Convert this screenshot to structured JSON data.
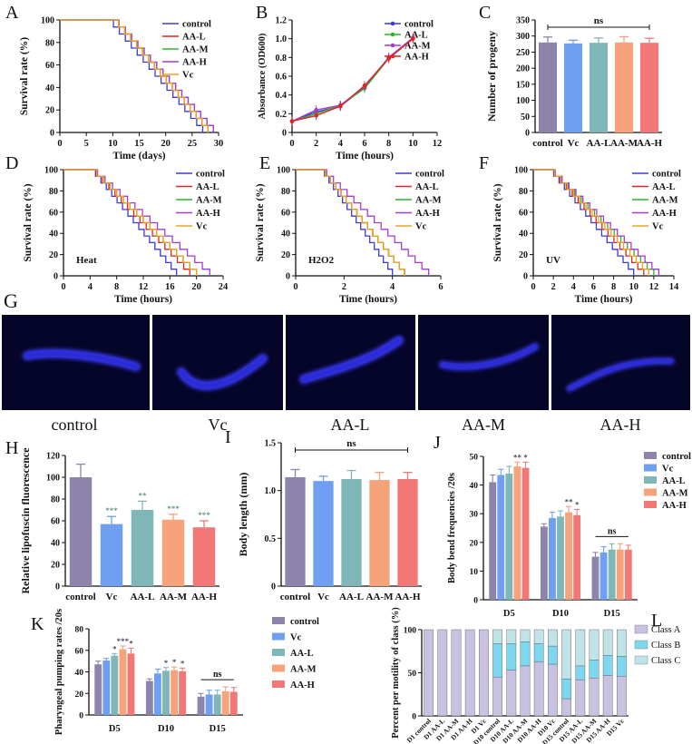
{
  "colors": {
    "control": "#3b3bd6",
    "red": "#e02424",
    "green": "#2cb52c",
    "purple": "#a73ad6",
    "orange": "#f0a020",
    "black": "#111111",
    "bar_control": "#8e83aa",
    "bar_vc": "#6f9ff0",
    "bar_aal": "#7fb6b7",
    "bar_aam": "#f6a27a",
    "bar_aah": "#f27878",
    "classA": "#c9c1e0",
    "classB": "#7ed7ef",
    "classC": "#bfe3e7",
    "panel_bg": "#05052a"
  },
  "chart_data": [
    {
      "id": "A",
      "type": "line",
      "step": true,
      "panel_label": "A",
      "xlabel": "Time (days)",
      "ylabel": "Survival rate (%)",
      "xlim": [
        0,
        30
      ],
      "ylim": [
        0,
        100
      ],
      "xticks": [
        0,
        5,
        10,
        15,
        20,
        25,
        30
      ],
      "yticks": [
        0,
        20,
        40,
        60,
        80,
        100
      ],
      "legend": "top-right",
      "series": [
        {
          "name": "control",
          "color": "control",
          "drop": [
            9,
            27
          ]
        },
        {
          "name": "AA-L",
          "color": "red",
          "drop": [
            10,
            28
          ]
        },
        {
          "name": "AA-M",
          "color": "green",
          "drop": [
            10,
            29
          ]
        },
        {
          "name": "AA-H",
          "color": "purple",
          "drop": [
            10,
            29
          ]
        },
        {
          "name": "Vc",
          "color": "orange",
          "drop": [
            10,
            28
          ]
        }
      ]
    },
    {
      "id": "B",
      "type": "line",
      "markers": true,
      "panel_label": "B",
      "xlabel": "Time (hours)",
      "ylabel": "Absorbance (OD600)",
      "xlim": [
        0,
        12
      ],
      "ylim": [
        0,
        1.2
      ],
      "xticks": [
        0,
        2,
        4,
        6,
        8,
        10,
        12
      ],
      "yticks": [
        0,
        0.2,
        0.4,
        0.6,
        0.8,
        1.0,
        1.2
      ],
      "ytick_labels": [
        "0",
        "0.2",
        "0.4",
        "0.6",
        "0.8",
        "1.0",
        "1.2"
      ],
      "legend": "top-right",
      "x": [
        0,
        2,
        4,
        6,
        8,
        10
      ],
      "series": [
        {
          "name": "control",
          "color": "control",
          "values": [
            0.12,
            0.22,
            0.28,
            0.48,
            0.8,
            1.01
          ]
        },
        {
          "name": "AA-L",
          "color": "green",
          "values": [
            0.12,
            0.2,
            0.29,
            0.47,
            0.79,
            1.0
          ]
        },
        {
          "name": "AA-M",
          "color": "purple",
          "values": [
            0.12,
            0.24,
            0.29,
            0.49,
            0.8,
            1.01
          ]
        },
        {
          "name": "AA-H",
          "color": "red",
          "values": [
            0.12,
            0.18,
            0.28,
            0.5,
            0.79,
            1.0
          ]
        }
      ]
    },
    {
      "id": "C",
      "type": "bar",
      "panel_label": "C",
      "ylabel": "Number of progeny",
      "ylim": [
        0,
        350
      ],
      "yticks": [
        0,
        50,
        100,
        150,
        200,
        250,
        300,
        350
      ],
      "categories": [
        "control",
        "Vc",
        "AA-L",
        "AA-M",
        "AA-H"
      ],
      "values": [
        280,
        277,
        279,
        280,
        279
      ],
      "errors": [
        17,
        10,
        15,
        18,
        14
      ],
      "bar_colors": [
        "bar_control",
        "bar_vc",
        "bar_aal",
        "bar_aam",
        "bar_aah"
      ],
      "annotation": "ns"
    },
    {
      "id": "D",
      "type": "line",
      "step": true,
      "panel_label": "D",
      "xlabel": "Time (hours)",
      "ylabel": "Survival rate (%)",
      "inset_label": "Heat",
      "xlim": [
        0,
        24
      ],
      "ylim": [
        0,
        100
      ],
      "xticks": [
        0,
        4,
        8,
        12,
        16,
        20,
        24
      ],
      "yticks": [
        0,
        20,
        40,
        60,
        80,
        100
      ],
      "legend": "top-right",
      "series": [
        {
          "name": "control",
          "color": "control",
          "drop": [
            4,
            17
          ]
        },
        {
          "name": "AA-L",
          "color": "red",
          "drop": [
            4,
            19
          ]
        },
        {
          "name": "AA-M",
          "color": "green",
          "drop": [
            4,
            20
          ]
        },
        {
          "name": "AA-H",
          "color": "purple",
          "drop": [
            4,
            22
          ]
        },
        {
          "name": "Vc",
          "color": "orange",
          "drop": [
            4,
            20
          ]
        }
      ]
    },
    {
      "id": "E",
      "type": "line",
      "step": true,
      "panel_label": "E",
      "xlabel": "Time (hours)",
      "ylabel": "Survival rate (%)",
      "inset_label": "H2O2",
      "xlim": [
        0,
        6
      ],
      "ylim": [
        0,
        100
      ],
      "xticks": [
        0,
        2,
        4,
        6
      ],
      "yticks": [
        0,
        20,
        40,
        60,
        80,
        100
      ],
      "legend": "top-right",
      "series": [
        {
          "name": "control",
          "color": "control",
          "drop": [
            1,
            4
          ]
        },
        {
          "name": "AA-L",
          "color": "red",
          "drop": [
            1,
            4.5
          ]
        },
        {
          "name": "AA-M",
          "color": "green",
          "drop": [
            1,
            4.5
          ]
        },
        {
          "name": "AA-H",
          "color": "purple",
          "drop": [
            1,
            5.5
          ]
        },
        {
          "name": "Vc",
          "color": "orange",
          "drop": [
            1,
            4.5
          ]
        }
      ]
    },
    {
      "id": "F",
      "type": "line",
      "step": true,
      "panel_label": "F",
      "xlabel": "Time (hours)",
      "ylabel": "Survival rate (%)",
      "inset_label": "UV",
      "xlim": [
        0,
        14
      ],
      "ylim": [
        0,
        100
      ],
      "xticks": [
        0,
        2,
        4,
        6,
        8,
        10,
        12,
        14
      ],
      "yticks": [
        0,
        20,
        40,
        60,
        80,
        100
      ],
      "legend": "top-right",
      "series": [
        {
          "name": "control",
          "color": "control",
          "drop": [
            1.5,
            10
          ]
        },
        {
          "name": "AA-L",
          "color": "red",
          "drop": [
            1.5,
            11
          ]
        },
        {
          "name": "AA-M",
          "color": "green",
          "drop": [
            1.5,
            12
          ]
        },
        {
          "name": "AA-H",
          "color": "purple",
          "drop": [
            1.5,
            12.5
          ]
        },
        {
          "name": "Vc",
          "color": "orange",
          "drop": [
            1.5,
            11.5
          ]
        }
      ]
    },
    {
      "id": "H",
      "type": "bar",
      "panel_label": "H",
      "ylabel": "Relative lipofuscin fluorescence",
      "ylim": [
        0,
        120
      ],
      "yticks": [
        0,
        20,
        40,
        60,
        80,
        100,
        120
      ],
      "categories": [
        "control",
        "Vc",
        "AA-L",
        "AA-M",
        "AA-H"
      ],
      "values": [
        100,
        57,
        70,
        61,
        54
      ],
      "errors": [
        12,
        7,
        8,
        5,
        6
      ],
      "stars": [
        "",
        "***",
        "**",
        "***",
        "***"
      ],
      "bar_colors": [
        "bar_control",
        "bar_vc",
        "bar_aal",
        "bar_aam",
        "bar_aah"
      ]
    },
    {
      "id": "I",
      "type": "bar",
      "panel_label": "I",
      "ylabel": "Body length (mm)",
      "ylim": [
        0,
        1.5
      ],
      "yticks": [
        0,
        0.5,
        1.0,
        1.5
      ],
      "ytick_labels": [
        "0",
        "0.5",
        "1.0",
        "1.5"
      ],
      "categories": [
        "control",
        "Vc",
        "AA-L",
        "AA-M",
        "AA-H"
      ],
      "values": [
        1.14,
        1.1,
        1.12,
        1.11,
        1.12
      ],
      "errors": [
        0.08,
        0.05,
        0.09,
        0.08,
        0.07
      ],
      "bar_colors": [
        "bar_control",
        "bar_vc",
        "bar_aal",
        "bar_aam",
        "bar_aah"
      ],
      "annotation": "ns"
    },
    {
      "id": "J",
      "type": "bar",
      "grouped": true,
      "panel_label": "J",
      "ylabel": "Body bend frequencies /20s",
      "ylim": [
        0,
        50
      ],
      "yticks": [
        0,
        10,
        20,
        30,
        40,
        50
      ],
      "categories": [
        "D5",
        "D10",
        "D15"
      ],
      "legend": "right",
      "series": [
        {
          "name": "control",
          "color": "bar_control",
          "values": [
            41,
            25.5,
            15
          ],
          "errors": [
            2.5,
            1,
            1.5
          ],
          "stars": [
            "",
            "",
            ""
          ]
        },
        {
          "name": "Vc",
          "color": "bar_vc",
          "values": [
            43.5,
            28.5,
            16.5
          ],
          "errors": [
            2,
            2,
            2
          ],
          "stars": [
            "",
            "",
            ""
          ]
        },
        {
          "name": "AA-L",
          "color": "bar_aal",
          "values": [
            44,
            29,
            17.5
          ],
          "errors": [
            2.5,
            2,
            2
          ],
          "stars": [
            "",
            "",
            ""
          ]
        },
        {
          "name": "AA-M",
          "color": "bar_aam",
          "values": [
            46.5,
            30.5,
            17.5
          ],
          "errors": [
            1.5,
            2,
            2
          ],
          "stars": [
            "**",
            "**",
            ""
          ]
        },
        {
          "name": "AA-H",
          "color": "bar_aah",
          "values": [
            46,
            29.5,
            17.5
          ],
          "errors": [
            2,
            2,
            1.5
          ],
          "stars": [
            "*",
            "*",
            ""
          ]
        }
      ],
      "group_annotations": [
        "",
        "",
        "ns"
      ]
    },
    {
      "id": "K",
      "type": "bar",
      "grouped": true,
      "panel_label": "K",
      "ylabel": "Pharyngeal pumping rates /20s",
      "ylim": [
        0,
        80
      ],
      "yticks": [
        0,
        20,
        40,
        60,
        80
      ],
      "categories": [
        "D5",
        "D10",
        "D15"
      ],
      "legend": "top-right",
      "series": [
        {
          "name": "control",
          "color": "bar_control",
          "values": [
            47,
            31.5,
            17
          ],
          "errors": [
            3,
            2,
            3
          ],
          "stars": [
            "",
            "",
            ""
          ]
        },
        {
          "name": "Vc",
          "color": "bar_vc",
          "values": [
            50.5,
            38.5,
            19
          ],
          "errors": [
            2,
            4,
            4
          ],
          "stars": [
            "",
            "",
            ""
          ]
        },
        {
          "name": "AA-L",
          "color": "bar_aal",
          "values": [
            55,
            41,
            19
          ],
          "errors": [
            2,
            3,
            4
          ],
          "stars": [
            "*",
            "*",
            ""
          ]
        },
        {
          "name": "AA-M",
          "color": "bar_aam",
          "values": [
            61,
            41.5,
            22
          ],
          "errors": [
            3,
            3,
            4
          ],
          "stars": [
            "***",
            "*",
            ""
          ]
        },
        {
          "name": "AA-H",
          "color": "bar_aah",
          "values": [
            57,
            40.5,
            21.5
          ],
          "errors": [
            5,
            3,
            4
          ],
          "stars": [
            "*",
            "*",
            ""
          ]
        }
      ],
      "group_annotations": [
        "",
        "",
        "ns"
      ]
    },
    {
      "id": "L",
      "type": "bar",
      "stacked": true,
      "panel_label": "L",
      "ylabel": "Percent per motility of class (%)",
      "ylim": [
        0,
        100
      ],
      "yticks": [
        0,
        50,
        100
      ],
      "categories": [
        "D1 control",
        "D1 AA-L",
        "D1 AA-M",
        "D1 AA-H",
        "D1 Vc",
        "D10 control",
        "D10 AA-L",
        "D10 AA-M",
        "D10 AA-H",
        "D10 Vc",
        "D15 control",
        "D15 AA-L",
        "D15 AA-M",
        "D15 AA-H",
        "D15 Vc"
      ],
      "legend": "top-right",
      "series": [
        {
          "name": "Class A",
          "color": "classA",
          "values": [
            100,
            100,
            100,
            100,
            100,
            45,
            53,
            58,
            63,
            60,
            20,
            42,
            44,
            47,
            46
          ]
        },
        {
          "name": "Class B",
          "color": "classB",
          "values": [
            0,
            0,
            0,
            0,
            0,
            39,
            31,
            28,
            21,
            21,
            23,
            16,
            21,
            23,
            23
          ]
        },
        {
          "name": "Class C",
          "color": "classC",
          "values": [
            0,
            0,
            0,
            0,
            0,
            16,
            16,
            14,
            16,
            19,
            57,
            42,
            35,
            30,
            31
          ]
        }
      ]
    }
  ],
  "image_panel": {
    "panel_label": "G",
    "items": [
      "control",
      "Vc",
      "AA-L",
      "AA-M",
      "AA-H"
    ]
  }
}
